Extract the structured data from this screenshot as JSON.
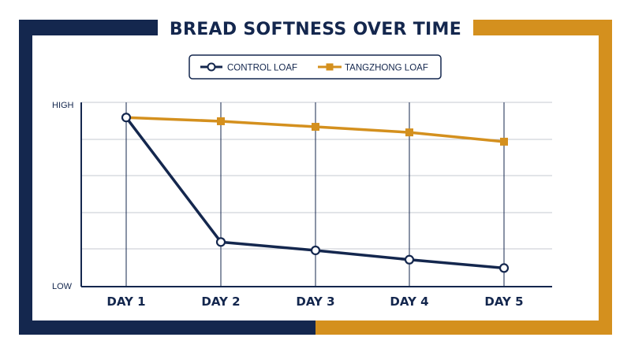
{
  "chart_data": {
    "type": "line",
    "title": "BREAD SOFTNESS OVER TIME",
    "xlabel": "",
    "ylabel": "",
    "categories": [
      "DAY 1",
      "DAY 2",
      "DAY 3",
      "DAY 4",
      "DAY 5"
    ],
    "ylim": [
      0,
      100
    ],
    "y_tick_labels": [
      {
        "label": "LOW",
        "value": 0
      },
      {
        "label": "HIGH",
        "value": 100
      }
    ],
    "grid": true,
    "legend_position": "top-center",
    "series": [
      {
        "name": "CONTROL LOAF",
        "color": "#14274e",
        "marker": "circle",
        "values": [
          91,
          24,
          19.5,
          14.5,
          10
        ]
      },
      {
        "name": "TANGZHONG LOAF",
        "color": "#d4901e",
        "marker": "square",
        "values": [
          91,
          89,
          86,
          83,
          78
        ]
      }
    ]
  },
  "colors": {
    "navy": "#14274e",
    "gold": "#d4901e",
    "grid": "#c4c8d0"
  }
}
